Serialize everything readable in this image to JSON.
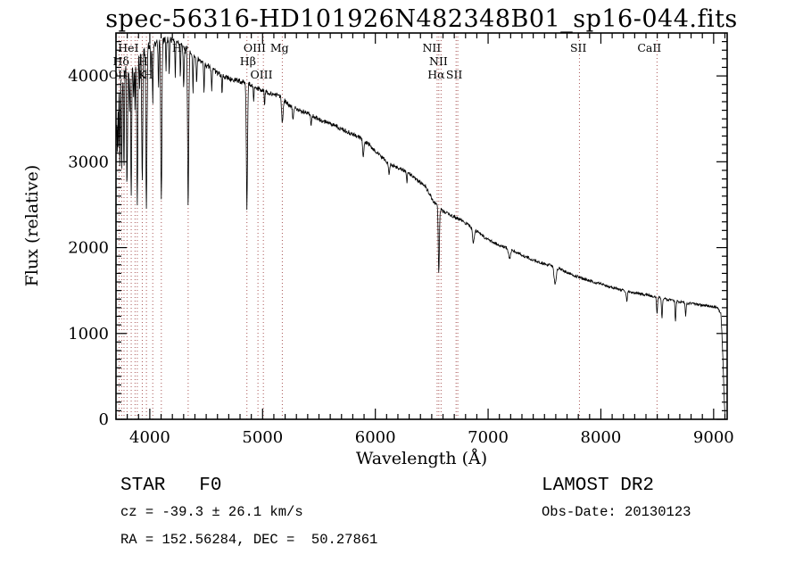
{
  "chart_data": {
    "type": "line",
    "title": "spec-56316-HD101926N482348B01_sp16-044.fits",
    "xlabel": "Wavelength (Å)",
    "ylabel": "Flux (relative)",
    "xlim": [
      3700,
      9120
    ],
    "ylim": [
      0,
      4500
    ],
    "x_major_ticks": [
      4000,
      5000,
      6000,
      7000,
      8000,
      9000
    ],
    "x_minor_step": 100,
    "y_major_ticks": [
      0,
      1000,
      2000,
      3000,
      4000
    ],
    "y_minor_step": 100,
    "line_color": "#000000",
    "marker_line_color": "#a85454",
    "spectral_line_markers": [
      3727,
      3750,
      3771,
      3798,
      3835,
      3869,
      3889,
      3933,
      3970,
      4026,
      4102,
      4340,
      4861,
      4959,
      5007,
      5175,
      6548,
      6563,
      6583,
      6716,
      6731,
      7810,
      8498
    ],
    "spectral_labels": [
      {
        "text": "HeI",
        "wavelength": 3810,
        "row": 0
      },
      {
        "text": "Hγ",
        "wavelength": 4270,
        "row": 0
      },
      {
        "text": "OIII",
        "wavelength": 4930,
        "row": 0
      },
      {
        "text": "Mg",
        "wavelength": 5150,
        "row": 0
      },
      {
        "text": "NII",
        "wavelength": 6500,
        "row": 0
      },
      {
        "text": "SII",
        "wavelength": 7800,
        "row": 0
      },
      {
        "text": "CaII",
        "wavelength": 8430,
        "row": 0
      },
      {
        "text": "Hδ",
        "wavelength": 3745,
        "row": 1
      },
      {
        "text": "H",
        "wavelength": 3940,
        "row": 1
      },
      {
        "text": "Hβ",
        "wavelength": 4870,
        "row": 1
      },
      {
        "text": "NII",
        "wavelength": 6560,
        "row": 1
      },
      {
        "text": "OII",
        "wavelength": 3715,
        "row": 2
      },
      {
        "text": "K",
        "wavelength": 3933,
        "row": 2
      },
      {
        "text": "H",
        "wavelength": 3985,
        "row": 2
      },
      {
        "text": "OIII",
        "wavelength": 4990,
        "row": 2
      },
      {
        "text": "Hα",
        "wavelength": 6540,
        "row": 2
      },
      {
        "text": "SII",
        "wavelength": 6700,
        "row": 2
      }
    ],
    "continuum": [
      [
        3700,
        3250
      ],
      [
        3712,
        3650
      ],
      [
        3725,
        3900
      ],
      [
        3745,
        4000
      ],
      [
        3780,
        4070
      ],
      [
        3825,
        4130
      ],
      [
        3875,
        4200
      ],
      [
        3925,
        4270
      ],
      [
        3975,
        4330
      ],
      [
        4030,
        4380
      ],
      [
        4090,
        4410
      ],
      [
        4150,
        4430
      ],
      [
        4210,
        4410
      ],
      [
        4270,
        4370
      ],
      [
        4330,
        4310
      ],
      [
        4400,
        4220
      ],
      [
        4470,
        4150
      ],
      [
        4540,
        4090
      ],
      [
        4610,
        4020
      ],
      [
        4680,
        3980
      ],
      [
        4760,
        3950
      ],
      [
        4840,
        3925
      ],
      [
        4920,
        3880
      ],
      [
        5000,
        3830
      ],
      [
        5080,
        3790
      ],
      [
        5160,
        3770
      ],
      [
        5240,
        3650
      ],
      [
        5320,
        3610
      ],
      [
        5400,
        3560
      ],
      [
        5480,
        3510
      ],
      [
        5560,
        3460
      ],
      [
        5640,
        3420
      ],
      [
        5720,
        3370
      ],
      [
        5800,
        3320
      ],
      [
        5880,
        3270
      ],
      [
        5960,
        3180
      ],
      [
        6040,
        3070
      ],
      [
        6120,
        2980
      ],
      [
        6200,
        2920
      ],
      [
        6280,
        2880
      ],
      [
        6360,
        2800
      ],
      [
        6440,
        2720
      ],
      [
        6520,
        2530
      ],
      [
        6600,
        2420
      ],
      [
        6680,
        2370
      ],
      [
        6760,
        2320
      ],
      [
        6840,
        2250
      ],
      [
        6920,
        2170
      ],
      [
        7000,
        2090
      ],
      [
        7080,
        2040
      ],
      [
        7160,
        2000
      ],
      [
        7240,
        1950
      ],
      [
        7320,
        1900
      ],
      [
        7400,
        1860
      ],
      [
        7480,
        1820
      ],
      [
        7560,
        1790
      ],
      [
        7640,
        1750
      ],
      [
        7720,
        1700
      ],
      [
        7800,
        1660
      ],
      [
        7880,
        1620
      ],
      [
        7960,
        1590
      ],
      [
        8040,
        1560
      ],
      [
        8120,
        1530
      ],
      [
        8200,
        1500
      ],
      [
        8280,
        1480
      ],
      [
        8360,
        1460
      ],
      [
        8440,
        1440
      ],
      [
        8520,
        1415
      ],
      [
        8600,
        1395
      ],
      [
        8680,
        1375
      ],
      [
        8760,
        1355
      ],
      [
        8840,
        1340
      ],
      [
        8920,
        1325
      ],
      [
        9000,
        1310
      ],
      [
        9040,
        1290
      ],
      [
        9065,
        1230
      ],
      [
        9080,
        800
      ],
      [
        9092,
        300
      ],
      [
        9100,
        60
      ]
    ],
    "absorption_lines": [
      [
        3712,
        450,
        3
      ],
      [
        3722,
        600,
        3
      ],
      [
        3734,
        950,
        3
      ],
      [
        3750,
        1150,
        3.5
      ],
      [
        3771,
        1250,
        3.5
      ],
      [
        3798,
        1400,
        4
      ],
      [
        3819,
        550,
        3
      ],
      [
        3835,
        1600,
        4
      ],
      [
        3856,
        420,
        3
      ],
      [
        3869,
        620,
        3
      ],
      [
        3889,
        1700,
        4.5
      ],
      [
        3910,
        380,
        3
      ],
      [
        3933,
        1500,
        4.5
      ],
      [
        3970,
        1850,
        5
      ],
      [
        4009,
        380,
        3
      ],
      [
        4026,
        680,
        3.5
      ],
      [
        4077,
        520,
        3
      ],
      [
        4102,
        1880,
        5
      ],
      [
        4144,
        380,
        3
      ],
      [
        4172,
        400,
        3
      ],
      [
        4226,
        450,
        3
      ],
      [
        4271,
        380,
        3
      ],
      [
        4300,
        480,
        4
      ],
      [
        4340,
        1850,
        5
      ],
      [
        4383,
        450,
        3
      ],
      [
        4415,
        330,
        3
      ],
      [
        4481,
        350,
        3
      ],
      [
        4549,
        270,
        3
      ],
      [
        4640,
        200,
        3
      ],
      [
        4861,
        1480,
        5
      ],
      [
        4921,
        200,
        3
      ],
      [
        5018,
        180,
        3
      ],
      [
        5175,
        280,
        7
      ],
      [
        5270,
        160,
        4
      ],
      [
        5430,
        120,
        4
      ],
      [
        5893,
        210,
        5
      ],
      [
        6122,
        130,
        4
      ],
      [
        6280,
        110,
        4
      ],
      [
        6563,
        760,
        5
      ],
      [
        6870,
        170,
        7
      ],
      [
        7190,
        110,
        8
      ],
      [
        7594,
        200,
        9
      ],
      [
        8230,
        110,
        5
      ],
      [
        8498,
        200,
        4
      ],
      [
        8542,
        240,
        4
      ],
      [
        8662,
        240,
        4
      ],
      [
        8752,
        150,
        4
      ]
    ],
    "noise_profile": [
      [
        3700,
        135
      ],
      [
        3850,
        90
      ],
      [
        4000,
        55
      ],
      [
        4250,
        40
      ],
      [
        4700,
        32
      ],
      [
        5300,
        27
      ],
      [
        6000,
        24
      ],
      [
        7000,
        19
      ],
      [
        8000,
        16
      ],
      [
        9100,
        14
      ]
    ]
  },
  "footer": {
    "classification": "STAR   F0",
    "survey": "LAMOST DR2",
    "cz": "cz = -39.3 ± 26.1 km/s",
    "obs_date": "Obs-Date: 20130123",
    "radec": "RA = 152.56284, DEC =  50.27861"
  }
}
